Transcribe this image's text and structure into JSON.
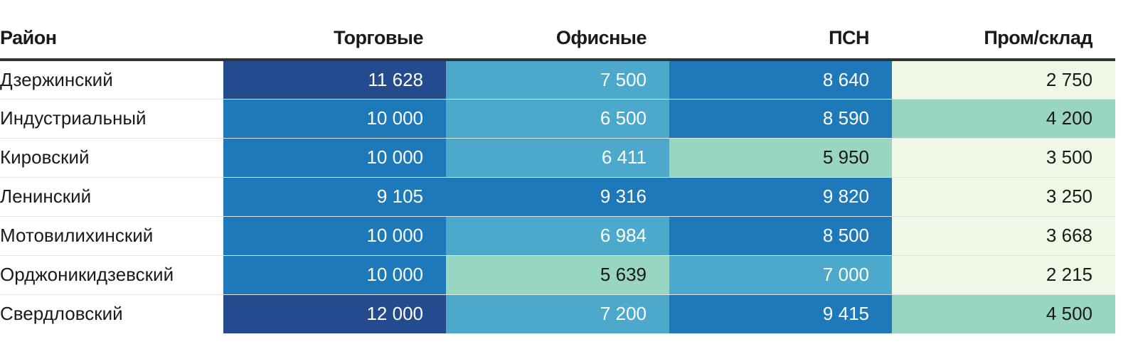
{
  "chart_data": {
    "type": "table",
    "columns": [
      "Район",
      "Торговые",
      "Офисные",
      "ПСН",
      "Пром/склад"
    ],
    "rows": [
      {
        "district": "Дзержинский",
        "values": [
          "11 628",
          "7 500",
          "8 640",
          "2 750"
        ]
      },
      {
        "district": "Индустриальный",
        "values": [
          "10 000",
          "6 500",
          "8 590",
          "4 200"
        ]
      },
      {
        "district": "Кировский",
        "values": [
          "10 000",
          "6 411",
          "5 950",
          "3 500"
        ]
      },
      {
        "district": "Ленинский",
        "values": [
          "9 105",
          "9 316",
          "9 820",
          "3 250"
        ]
      },
      {
        "district": "Мотовилихинский",
        "values": [
          "10 000",
          "6 984",
          "8 500",
          "3 668"
        ]
      },
      {
        "district": "Орджоникидзевский",
        "values": [
          "10 000",
          "5 639",
          "7 000",
          "2 215"
        ]
      },
      {
        "district": "Свердловский",
        "values": [
          "12 000",
          "7 200",
          "9 415",
          "4 500"
        ]
      }
    ],
    "color_scale": {
      "bins": [
        {
          "min": 0,
          "max": 3000,
          "color": "#eff8e6"
        },
        {
          "min": 3000,
          "max": 4000,
          "color": "#eff8e6"
        },
        {
          "min": 4000,
          "max": 6000,
          "color": "#98d6c1"
        },
        {
          "min": 6000,
          "max": 8000,
          "color": "#4ca9cc"
        },
        {
          "min": 8000,
          "max": 11000,
          "color": "#1d79b9"
        },
        {
          "min": 11000,
          "max": 99999,
          "color": "#244b8e"
        }
      ]
    }
  }
}
